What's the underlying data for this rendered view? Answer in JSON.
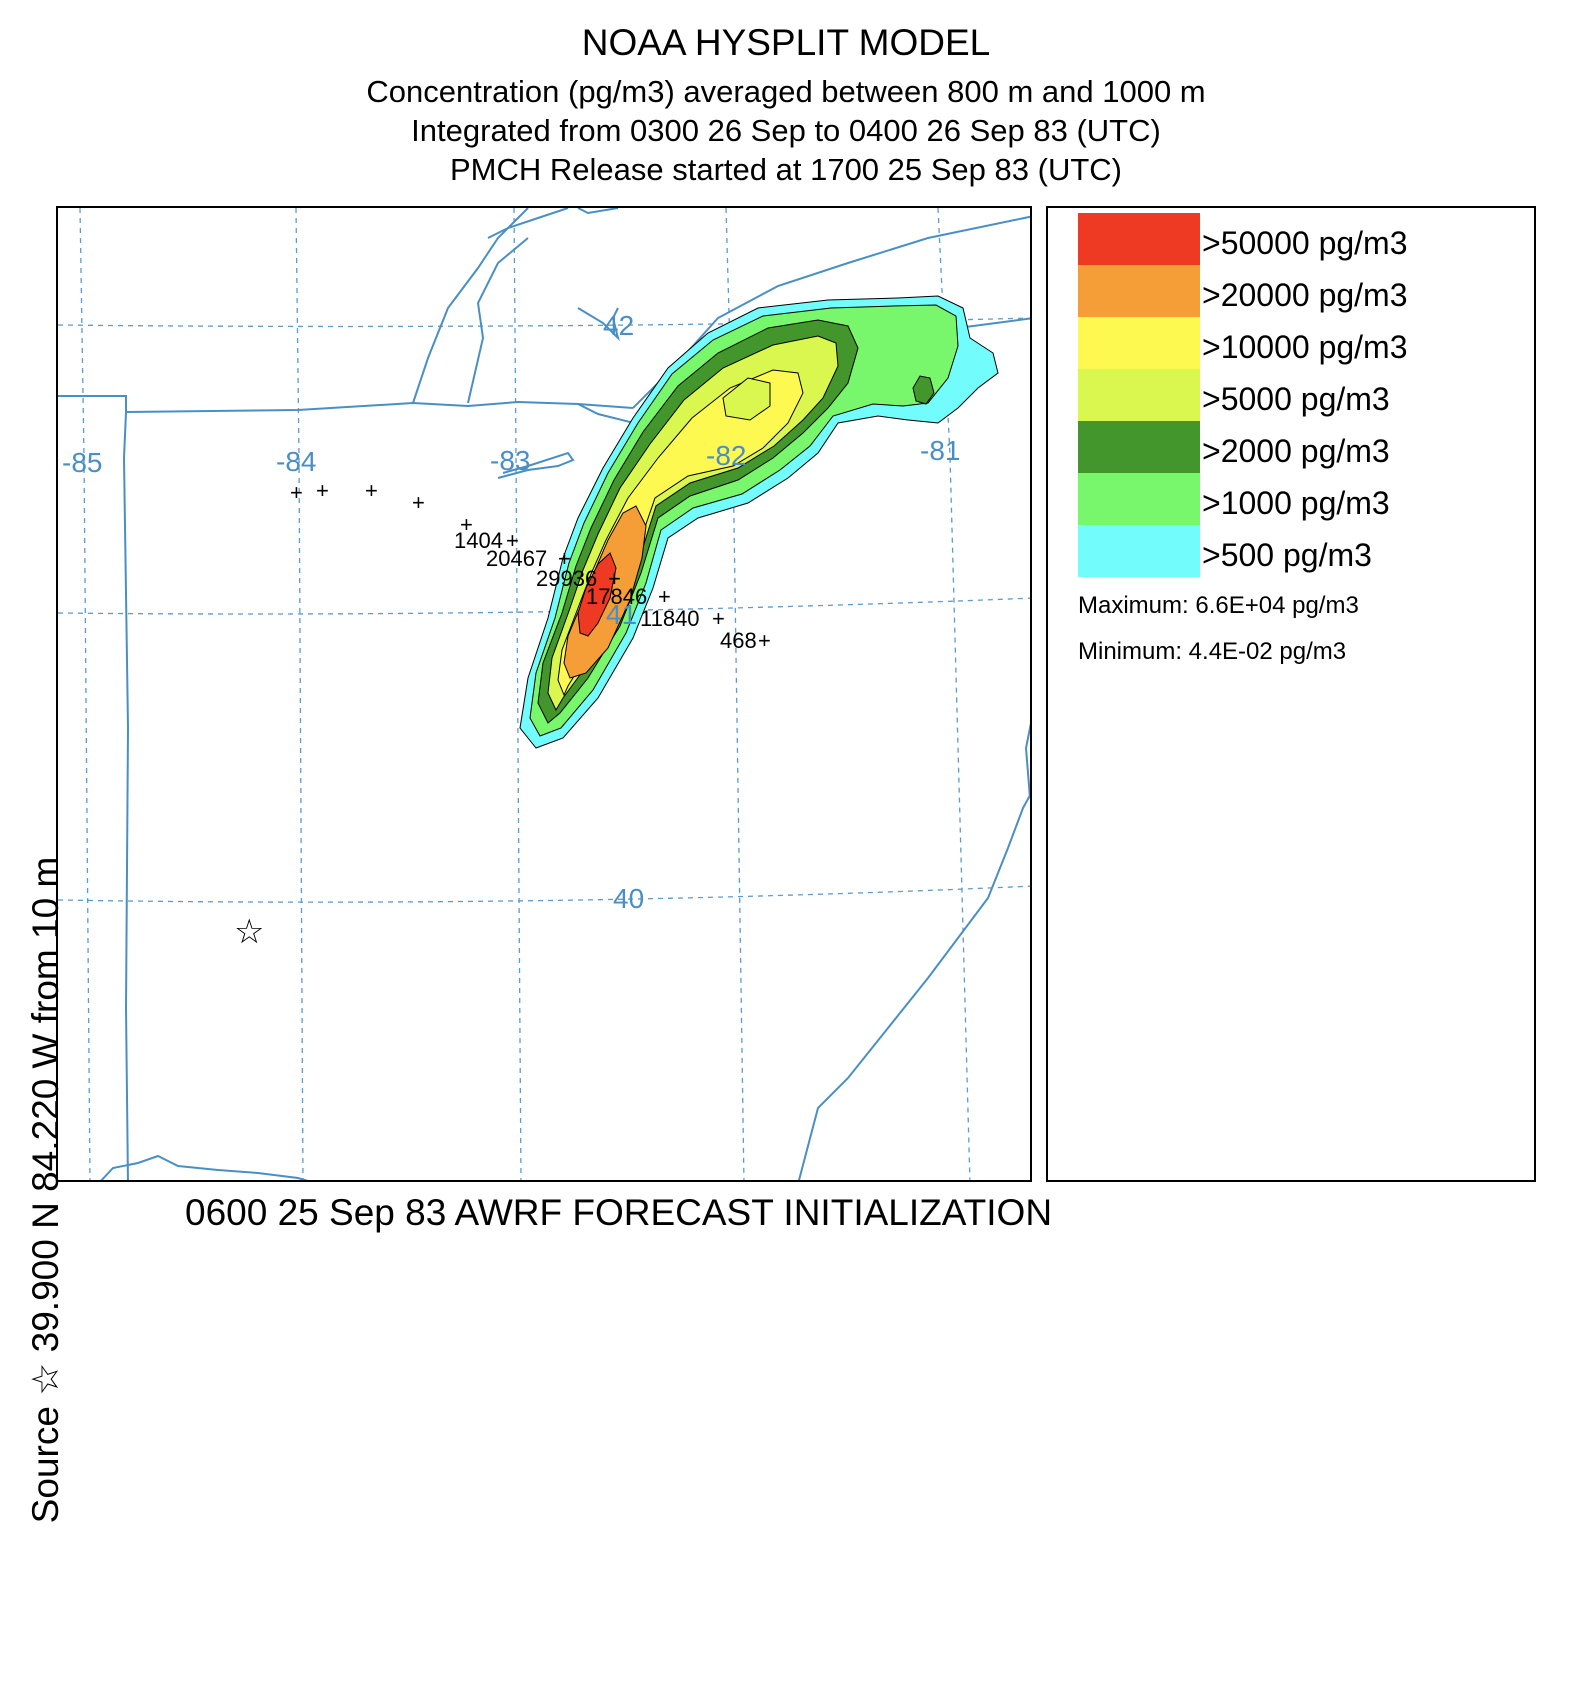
{
  "title": {
    "line1": "NOAA HYSPLIT MODEL",
    "line2": "Concentration  (pg/m3) averaged between   800 m and  1000 m",
    "line3": "Integrated from 0300 26 Sep to 0400 26 Sep 83 (UTC)",
    "line4": "PMCH Release started at 1700 25 Sep 83 (UTC)"
  },
  "side_label": "Source ☆ 39.900  N  84.220  W  from  10 m",
  "footer": "0600 25 Sep 83 AWRF FORECAST INITIALIZATION",
  "map": {
    "longitude_labels": [
      "-85",
      "-84",
      "-83",
      "-82",
      "-81"
    ],
    "latitude_labels": [
      "42",
      "41",
      "40"
    ],
    "source_marker": "☆",
    "source_lat": 39.9,
    "source_lon": -84.22,
    "station_values": [
      "1404",
      "20467",
      "29936",
      "17846",
      "11840",
      "468"
    ],
    "colors": {
      "boundary": "#4a8fc4",
      "gridline": "#5a9bd0",
      "grid_label": "#4a8fc4",
      "contour_line": "#000000"
    }
  },
  "legend": {
    "items": [
      {
        "label": ">50000 pg/m3",
        "color": "#ee3a23"
      },
      {
        "label": ">20000 pg/m3",
        "color": "#f59d37"
      },
      {
        "label": ">10000 pg/m3",
        "color": "#fdf951"
      },
      {
        "label": ">5000 pg/m3",
        "color": "#d9f74e"
      },
      {
        "label": ">2000 pg/m3",
        "color": "#43962b"
      },
      {
        "label": ">1000 pg/m3",
        "color": "#78f66c"
      },
      {
        "label": ">500 pg/m3",
        "color": "#72fcfc"
      }
    ],
    "maximum": "Maximum: 6.6E+04 pg/m3",
    "minimum": "Minimum: 4.4E-02 pg/m3"
  }
}
